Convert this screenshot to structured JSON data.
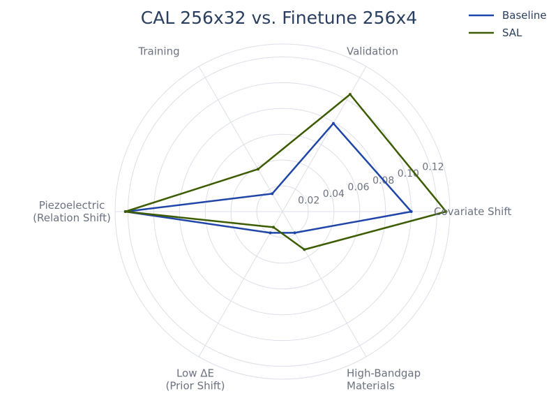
{
  "chart_data": {
    "type": "radar",
    "title": "CAL 256x32 vs. Finetune 256x4",
    "axes": [
      "Covariate Shift",
      "High-Bandgap\nMaterials",
      "Low ΔE\n(Prior Shift)",
      "Piezoelectric\n(Relation Shift)",
      "Training",
      "Validation"
    ],
    "radial_range": [
      0,
      0.13
    ],
    "radial_ticks": [
      0.02,
      0.04,
      0.06,
      0.08,
      0.1,
      0.12
    ],
    "radial_tick_labels": [
      "0.02",
      "0.04",
      "0.06",
      "0.08",
      "0.10",
      "0.12"
    ],
    "series": [
      {
        "name": "Baseline",
        "color": "#1f45a8",
        "values": [
          0.1,
          0.019,
          0.019,
          0.122,
          0.016,
          0.079
        ]
      },
      {
        "name": "SAL",
        "color": "#3d5c00",
        "values": [
          0.127,
          0.034,
          0.014,
          0.122,
          0.038,
          0.105
        ]
      }
    ],
    "legend_position": "top-right"
  }
}
